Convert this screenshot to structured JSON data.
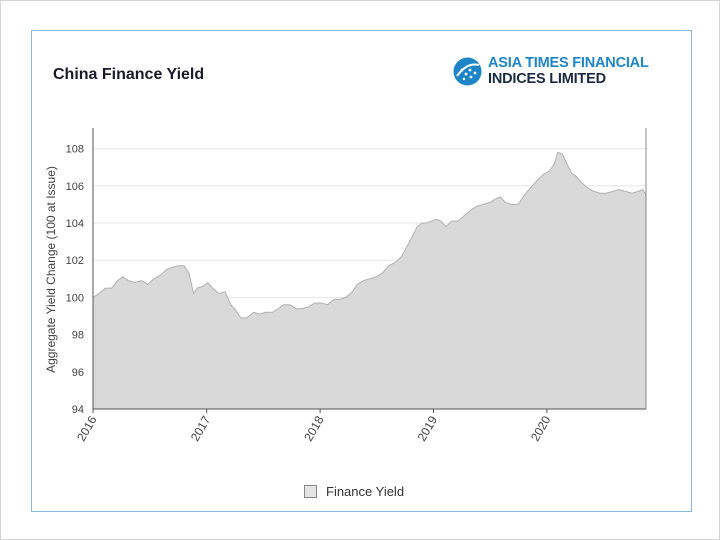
{
  "header": {
    "title": "China Finance Yield",
    "logo_line1": "ASIA TIMES FINANCIAL",
    "logo_line2": "INDICES LIMITED"
  },
  "colors": {
    "area_fill": "#d9d9d9",
    "area_stroke": "#b0b0b0",
    "grid": "#e6e6e6",
    "brand_blue": "#1e86c8",
    "brand_dark": "#1a2a44",
    "card_border": "#8fb8d8"
  },
  "chart_data": {
    "type": "area",
    "title": "China Finance Yield",
    "xlabel": "",
    "ylabel": "Aggregate Yield Change (100 at Issue)",
    "ylim": [
      94,
      109
    ],
    "xlim": [
      "2016-01-01",
      "2020-11-15"
    ],
    "yticks": [
      94,
      96,
      98,
      100,
      102,
      104,
      106,
      108
    ],
    "xtick_labels": [
      "2016",
      "2017",
      "2018",
      "2019",
      "2020"
    ],
    "xtick_dates": [
      "2016-01-01",
      "2017-01-01",
      "2018-01-01",
      "2019-01-01",
      "2020-01-01"
    ],
    "grid": true,
    "legend_position": "bottom",
    "series": [
      {
        "name": "Finance Yield",
        "points": [
          [
            "2016-01-01",
            100.0
          ],
          [
            "2016-01-20",
            100.2
          ],
          [
            "2016-02-10",
            100.5
          ],
          [
            "2016-03-01",
            100.5
          ],
          [
            "2016-03-20",
            100.9
          ],
          [
            "2016-04-05",
            101.1
          ],
          [
            "2016-04-25",
            100.9
          ],
          [
            "2016-05-15",
            100.8
          ],
          [
            "2016-06-05",
            100.9
          ],
          [
            "2016-06-25",
            100.7
          ],
          [
            "2016-07-15",
            101.0
          ],
          [
            "2016-08-05",
            101.2
          ],
          [
            "2016-08-25",
            101.5
          ],
          [
            "2016-09-10",
            101.6
          ],
          [
            "2016-10-01",
            101.7
          ],
          [
            "2016-10-20",
            101.7
          ],
          [
            "2016-11-05",
            101.3
          ],
          [
            "2016-11-20",
            100.2
          ],
          [
            "2016-12-01",
            100.5
          ],
          [
            "2016-12-20",
            100.6
          ],
          [
            "2017-01-05",
            100.8
          ],
          [
            "2017-01-20",
            100.5
          ],
          [
            "2017-02-10",
            100.2
          ],
          [
            "2017-03-01",
            100.3
          ],
          [
            "2017-03-20",
            99.6
          ],
          [
            "2017-04-05",
            99.3
          ],
          [
            "2017-04-20",
            98.9
          ],
          [
            "2017-05-10",
            98.9
          ],
          [
            "2017-06-01",
            99.2
          ],
          [
            "2017-06-20",
            99.1
          ],
          [
            "2017-07-10",
            99.2
          ],
          [
            "2017-08-01",
            99.2
          ],
          [
            "2017-08-20",
            99.4
          ],
          [
            "2017-09-05",
            99.6
          ],
          [
            "2017-09-25",
            99.6
          ],
          [
            "2017-10-15",
            99.4
          ],
          [
            "2017-11-05",
            99.4
          ],
          [
            "2017-11-25",
            99.5
          ],
          [
            "2017-12-15",
            99.7
          ],
          [
            "2018-01-05",
            99.7
          ],
          [
            "2018-01-25",
            99.6
          ],
          [
            "2018-02-15",
            99.9
          ],
          [
            "2018-03-05",
            99.9
          ],
          [
            "2018-03-25",
            100.0
          ],
          [
            "2018-04-15",
            100.3
          ],
          [
            "2018-05-01",
            100.7
          ],
          [
            "2018-05-20",
            100.9
          ],
          [
            "2018-06-10",
            101.0
          ],
          [
            "2018-07-01",
            101.1
          ],
          [
            "2018-07-20",
            101.3
          ],
          [
            "2018-08-10",
            101.7
          ],
          [
            "2018-09-01",
            101.9
          ],
          [
            "2018-09-20",
            102.2
          ],
          [
            "2018-10-10",
            102.8
          ],
          [
            "2018-10-25",
            103.3
          ],
          [
            "2018-11-10",
            103.8
          ],
          [
            "2018-11-25",
            104.0
          ],
          [
            "2018-12-10",
            104.0
          ],
          [
            "2018-12-25",
            104.1
          ],
          [
            "2019-01-10",
            104.2
          ],
          [
            "2019-01-25",
            104.1
          ],
          [
            "2019-02-10",
            103.8
          ],
          [
            "2019-03-01",
            104.1
          ],
          [
            "2019-03-20",
            104.1
          ],
          [
            "2019-04-10",
            104.4
          ],
          [
            "2019-05-01",
            104.7
          ],
          [
            "2019-05-20",
            104.9
          ],
          [
            "2019-06-10",
            105.0
          ],
          [
            "2019-07-01",
            105.1
          ],
          [
            "2019-07-20",
            105.3
          ],
          [
            "2019-08-05",
            105.4
          ],
          [
            "2019-08-20",
            105.1
          ],
          [
            "2019-09-10",
            105.0
          ],
          [
            "2019-10-01",
            105.0
          ],
          [
            "2019-10-20",
            105.5
          ],
          [
            "2019-11-10",
            105.9
          ],
          [
            "2019-12-01",
            106.3
          ],
          [
            "2019-12-20",
            106.6
          ],
          [
            "2020-01-10",
            106.8
          ],
          [
            "2020-01-25",
            107.2
          ],
          [
            "2020-02-05",
            107.8
          ],
          [
            "2020-02-20",
            107.7
          ],
          [
            "2020-03-05",
            107.2
          ],
          [
            "2020-03-20",
            106.7
          ],
          [
            "2020-04-05",
            106.5
          ],
          [
            "2020-04-20",
            106.2
          ],
          [
            "2020-05-10",
            105.9
          ],
          [
            "2020-06-01",
            105.7
          ],
          [
            "2020-06-20",
            105.6
          ],
          [
            "2020-07-10",
            105.6
          ],
          [
            "2020-08-01",
            105.7
          ],
          [
            "2020-08-20",
            105.8
          ],
          [
            "2020-09-10",
            105.7
          ],
          [
            "2020-10-01",
            105.6
          ],
          [
            "2020-10-20",
            105.7
          ],
          [
            "2020-11-05",
            105.8
          ],
          [
            "2020-11-15",
            105.5
          ]
        ]
      }
    ]
  }
}
